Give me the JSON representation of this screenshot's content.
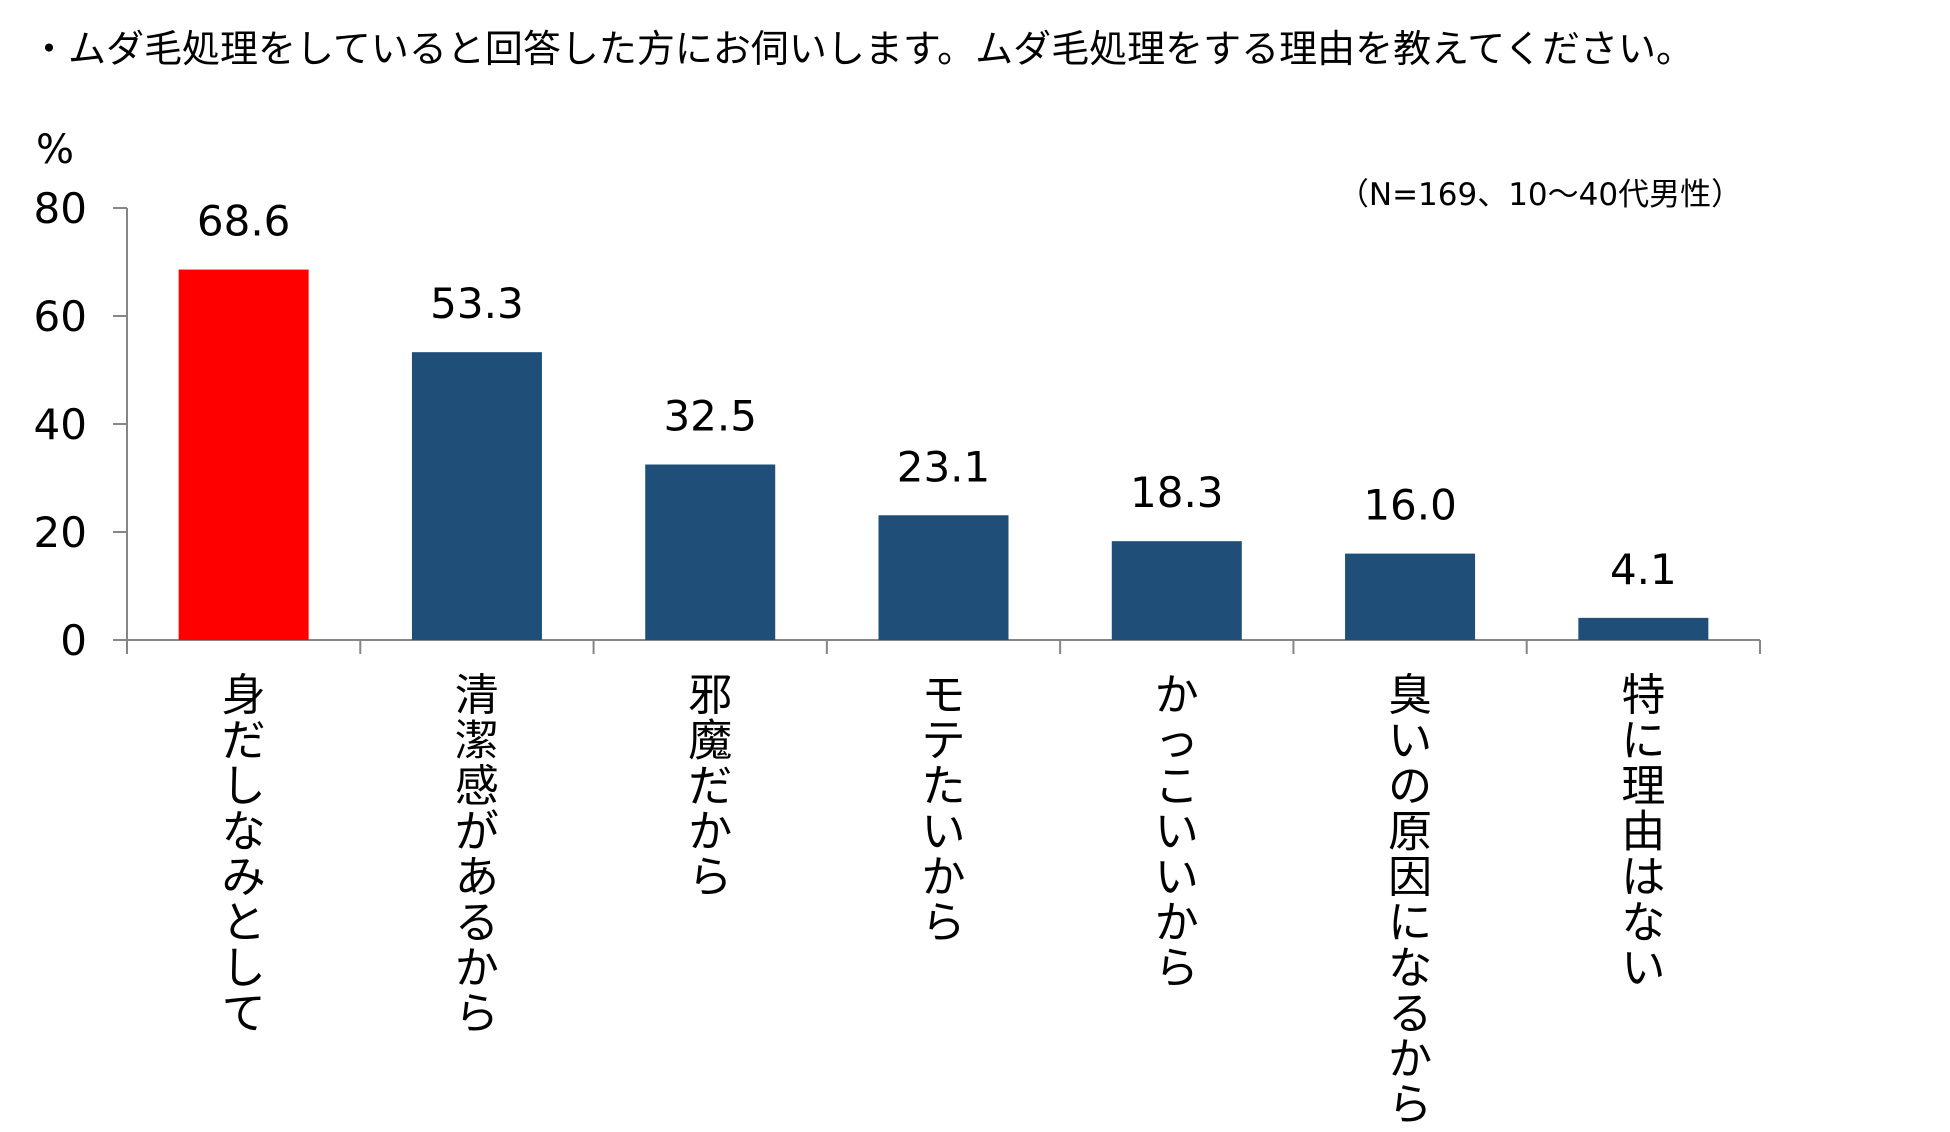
{
  "chart_data": {
    "type": "bar",
    "title": "・ムダ毛処理をしていると回答した方にお伺いします。ムダ毛処理をする理由を教えてください。",
    "ylabel": "%",
    "note": "（N=169、10～40代男性）",
    "ylim": [
      0,
      80
    ],
    "yticks": [
      0,
      20,
      40,
      60,
      80
    ],
    "categories": [
      "身だしなみとして",
      "清潔感があるから",
      "邪魔だから",
      "モテたいから",
      "かっこいいから",
      "臭いの原因になるから",
      "特に理由はない"
    ],
    "values": [
      68.6,
      53.3,
      32.5,
      23.1,
      18.3,
      16.0,
      4.1
    ],
    "value_labels": [
      "68.6",
      "53.3",
      "32.5",
      "23.1",
      "18.3",
      "16.0",
      "4.1"
    ],
    "colors": {
      "highlight": "#ff0000",
      "bar": "#1f4e79",
      "axis": "#868686"
    },
    "highlight_index": 0,
    "grid": false,
    "legend": "none"
  }
}
